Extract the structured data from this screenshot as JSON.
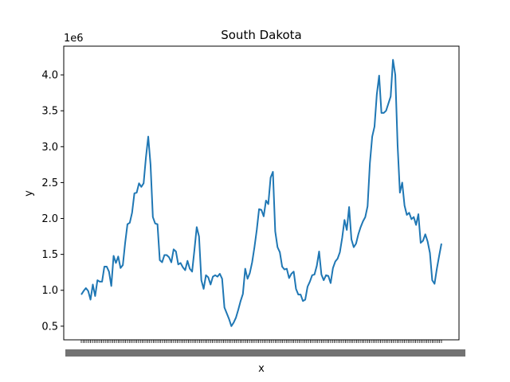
{
  "chart_data": {
    "type": "line",
    "title": "South Dakota",
    "xlabel": "x",
    "ylabel": "y",
    "y_multiplier_label": "1e6",
    "y_ticks": [
      0.5,
      1.0,
      1.5,
      2.0,
      2.5,
      3.0,
      3.5,
      4.0
    ],
    "y_tick_labels": [
      "0.5",
      "1.0",
      "1.5",
      "2.0",
      "2.5",
      "3.0",
      "3.5",
      "4.0"
    ],
    "ylim": [
      0.31,
      4.4
    ],
    "x_tick_count": 196,
    "grid": false,
    "line_color": "#1f77b4",
    "series": [
      {
        "values": [
          0.94,
          0.99,
          1.03,
          0.99,
          0.87,
          1.08,
          0.92,
          1.14,
          1.12,
          1.12,
          1.33,
          1.33,
          1.26,
          1.06,
          1.48,
          1.38,
          1.47,
          1.31,
          1.35,
          1.66,
          1.92,
          1.94,
          2.08,
          2.35,
          2.36,
          2.49,
          2.44,
          2.49,
          2.85,
          3.14,
          2.75,
          2.02,
          1.93,
          1.92,
          1.42,
          1.39,
          1.49,
          1.49,
          1.46,
          1.39,
          1.57,
          1.54,
          1.36,
          1.38,
          1.32,
          1.28,
          1.41,
          1.3,
          1.26,
          1.56,
          1.88,
          1.75,
          1.14,
          1.02,
          1.21,
          1.18,
          1.08,
          1.19,
          1.21,
          1.19,
          1.23,
          1.16,
          0.76,
          0.68,
          0.6,
          0.5,
          0.55,
          0.62,
          0.73,
          0.85,
          0.95,
          1.3,
          1.16,
          1.24,
          1.39,
          1.6,
          1.84,
          2.13,
          2.12,
          2.03,
          2.25,
          2.2,
          2.57,
          2.65,
          1.82,
          1.6,
          1.53,
          1.33,
          1.29,
          1.3,
          1.17,
          1.23,
          1.26,
          1.02,
          0.94,
          0.94,
          0.85,
          0.87,
          1.05,
          1.12,
          1.21,
          1.22,
          1.34,
          1.54,
          1.22,
          1.14,
          1.21,
          1.2,
          1.1,
          1.31,
          1.4,
          1.44,
          1.53,
          1.73,
          1.98,
          1.84,
          2.16,
          1.71,
          1.6,
          1.65,
          1.78,
          1.88,
          1.96,
          2.02,
          2.17,
          2.77,
          3.14,
          3.28,
          3.73,
          3.99,
          3.47,
          3.47,
          3.5,
          3.6,
          3.7,
          4.21,
          4.0,
          3.02,
          2.36,
          2.5,
          2.18,
          2.05,
          2.08,
          1.99,
          2.02,
          1.91,
          2.06,
          1.66,
          1.69,
          1.78,
          1.68,
          1.52,
          1.14,
          1.09,
          1.3,
          1.48,
          1.65
        ]
      }
    ]
  }
}
